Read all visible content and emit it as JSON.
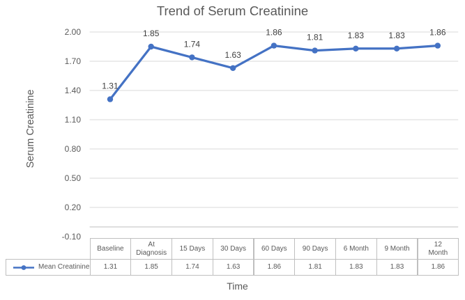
{
  "chart": {
    "title": "Trend of Serum Creatinine",
    "y_axis_title": "Serum Creatinine",
    "x_axis_title": "Time"
  },
  "legend": {
    "label": "Mean Creatinine",
    "marker": "line-with-dot"
  },
  "table": {
    "headers": [
      "Baseline",
      "At\nDiagnosis",
      "15 Days",
      "30 Days",
      "60 Days",
      "90 Days",
      "6 Month",
      "9 Month",
      "12\nMonth"
    ],
    "row_label": "Mean Creatinine",
    "values": [
      "1.31",
      "1.85",
      "1.74",
      "1.63",
      "1.86",
      "1.81",
      "1.83",
      "1.83",
      "1.86"
    ]
  },
  "chart_data": {
    "type": "line",
    "title": "Trend of Serum Creatinine",
    "xlabel": "Time",
    "ylabel": "Serum Creatinine",
    "categories": [
      "Baseline",
      "At Diagnosis",
      "15 Days",
      "30 Days",
      "60 Days",
      "90 Days",
      "6 Month",
      "9 Month",
      "12 Month"
    ],
    "series": [
      {
        "name": "Mean Creatinine",
        "values": [
          1.31,
          1.85,
          1.74,
          1.63,
          1.86,
          1.81,
          1.83,
          1.83,
          1.86
        ]
      }
    ],
    "ylim": [
      -0.1,
      2.0
    ],
    "yticks": [
      2.0,
      1.7,
      1.4,
      1.1,
      0.8,
      0.5,
      0.2,
      -0.1
    ],
    "grid": true,
    "data_labels": true,
    "legend_position": "table-left",
    "colors": {
      "series": "#4472C4",
      "gridline": "#D9D9D9",
      "zero_axis": "#BFBFBF",
      "title_text": "#595959",
      "axis_text": "#595959",
      "data_label_text": "#404040",
      "table_border": "#BFBFBF",
      "table_text": "#595959"
    }
  }
}
